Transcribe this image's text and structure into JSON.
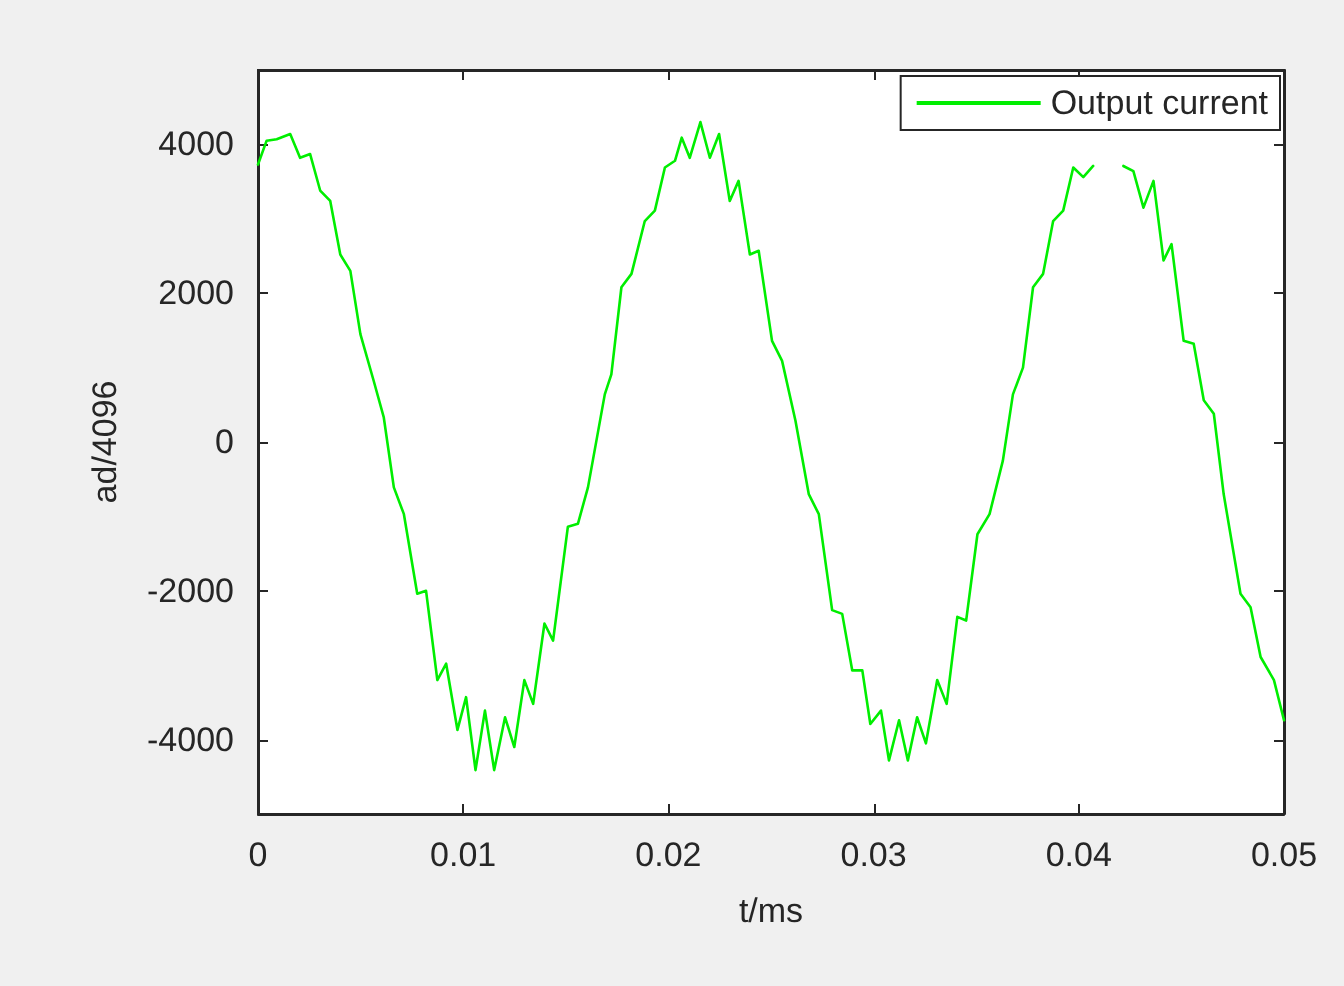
{
  "chart_data": {
    "type": "line",
    "xlabel": "t/ms",
    "ylabel": "ad/4096",
    "x": [
      0,
      0.00042,
      0.00091,
      0.00157,
      0.00205,
      0.00254,
      0.00303,
      0.00352,
      0.00401,
      0.0045,
      0.00499,
      0.00564,
      0.00613,
      0.00662,
      0.00711,
      0.00776,
      0.00819,
      0.00874,
      0.00917,
      0.00972,
      0.01014,
      0.0106,
      0.01106,
      0.01151,
      0.01204,
      0.01249,
      0.01298,
      0.01341,
      0.01396,
      0.01438,
      0.0151,
      0.01559,
      0.01608,
      0.0169,
      0.01722,
      0.01771,
      0.0182,
      0.01885,
      0.01934,
      0.01983,
      0.02032,
      0.02065,
      0.02104,
      0.02156,
      0.02202,
      0.02247,
      0.02299,
      0.02342,
      0.02397,
      0.0244,
      0.02505,
      0.02554,
      0.02619,
      0.02684,
      0.02733,
      0.02798,
      0.02847,
      0.02896,
      0.02945,
      0.02984,
      0.03036,
      0.03075,
      0.03124,
      0.03167,
      0.03212,
      0.03255,
      0.0331,
      0.03356,
      0.03408,
      0.03451,
      0.03506,
      0.03565,
      0.0363,
      0.03679,
      0.03728,
      0.03777,
      0.03826,
      0.03875,
      0.03924,
      0.03973,
      0.04022,
      0.0407,
      0.0415,
      0.04217,
      0.04266,
      0.04315,
      0.04364,
      0.04413,
      0.04452,
      0.04511,
      0.0456,
      0.04609,
      0.04658,
      0.04706,
      0.04788,
      0.04837,
      0.04886,
      0.04951,
      0.05
    ],
    "xlim": [
      0,
      0.05
    ],
    "ylim": [
      -5000,
      5000
    ],
    "xticks": [
      0,
      0.01,
      0.02,
      0.03,
      0.04,
      0.05
    ],
    "yticks": [
      -4000,
      -2000,
      0,
      2000,
      4000
    ],
    "legend": "top right",
    "series": [
      {
        "name": "Output current",
        "color": "#00ee00",
        "values": [
          3730,
          4050,
          4070,
          4140,
          3820,
          3870,
          3380,
          3240,
          2520,
          2300,
          1450,
          820,
          330,
          -610,
          -970,
          -2040,
          -2000,
          -3200,
          -2980,
          -3870,
          -3430,
          -4410,
          -3610,
          -4410,
          -3700,
          -4100,
          -3200,
          -3520,
          -2440,
          -2670,
          -1140,
          -1100,
          -610,
          640,
          910,
          2080,
          2260,
          2970,
          3110,
          3690,
          3780,
          4090,
          3820,
          4300,
          3820,
          4140,
          3240,
          3510,
          2520,
          2570,
          1360,
          1090,
          290,
          -700,
          -970,
          -2260,
          -2310,
          -3070,
          -3070,
          -3790,
          -3610,
          -4280,
          -3740,
          -4280,
          -3700,
          -4050,
          -3200,
          -3520,
          -2350,
          -2400,
          -1240,
          -970,
          -250,
          640,
          1000,
          2080,
          2260,
          2970,
          3110,
          3690,
          3560,
          3710,
          null,
          3710,
          3640,
          3150,
          3510,
          2440,
          2660,
          1360,
          1320,
          560,
          380,
          -700,
          -2040,
          -2220,
          -2890,
          -3200,
          -3740
        ]
      }
    ]
  }
}
